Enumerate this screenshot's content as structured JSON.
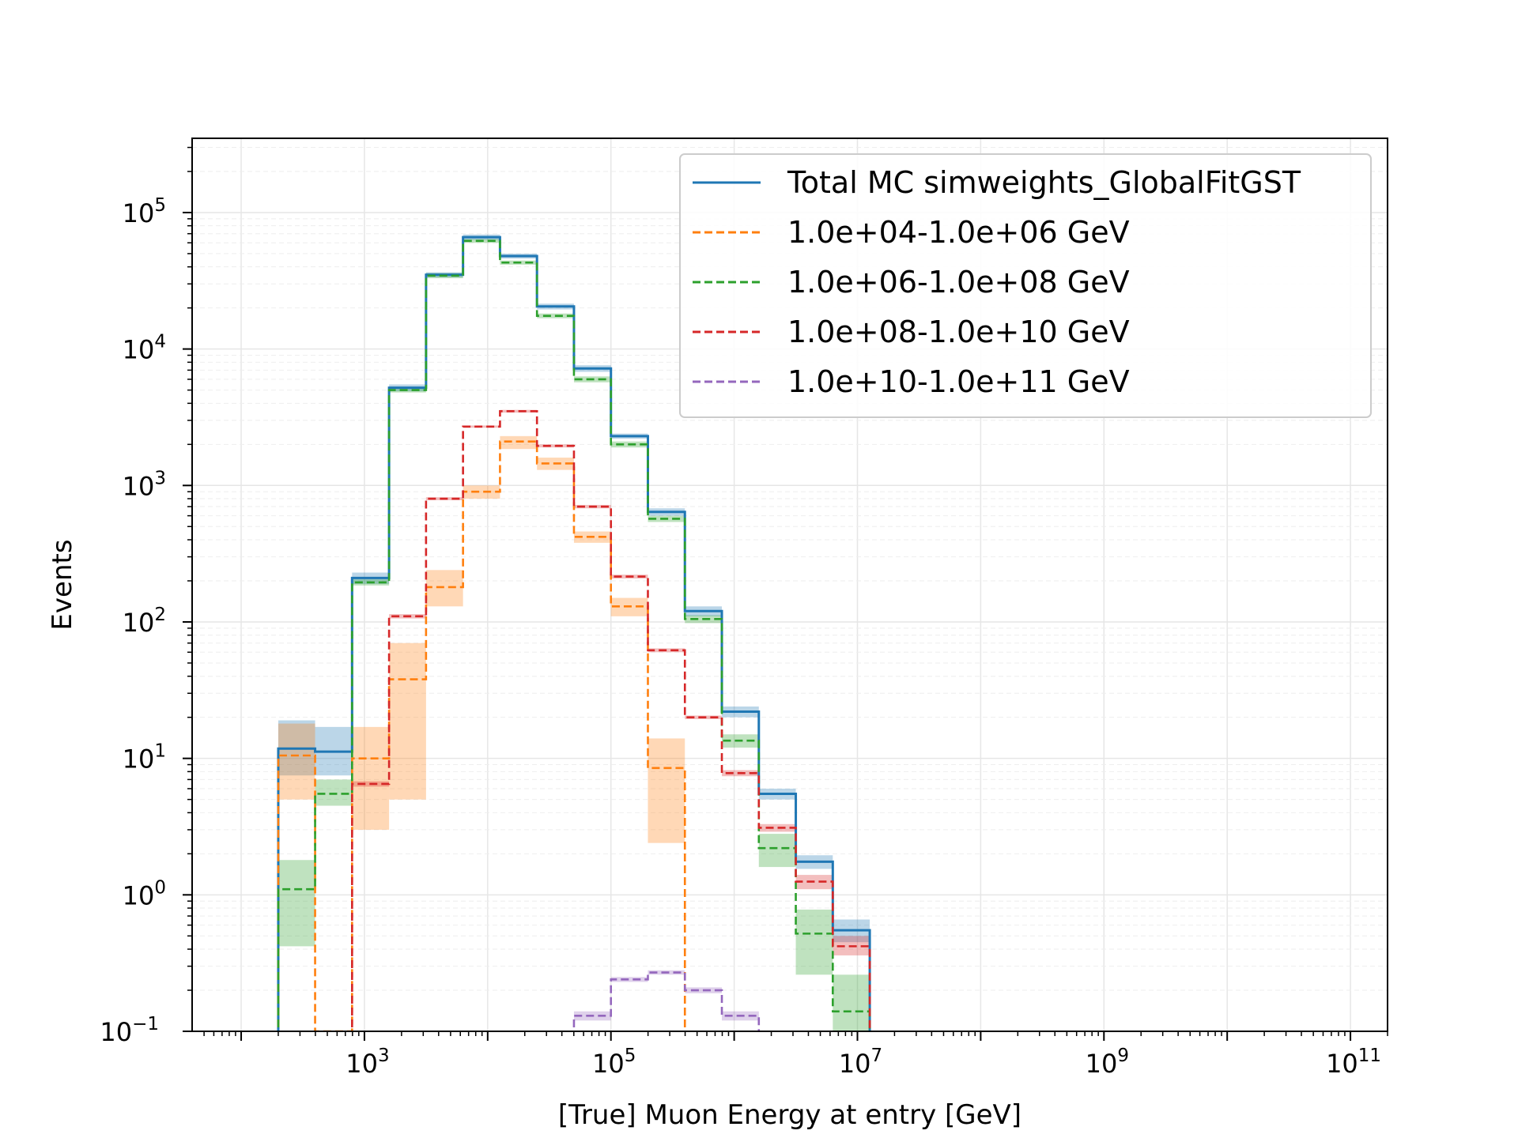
{
  "chart_data": {
    "type": "histogram",
    "xlabel": "[True] Muon Energy at entry [GeV]",
    "ylabel": "Events",
    "xscale": "log",
    "yscale": "log",
    "xlim": [
      40,
      200000000000.0
    ],
    "ylim": [
      0.1,
      350000
    ],
    "grid": true,
    "legend_position": "top-right",
    "x_tick_labels": [
      {
        "base": "10",
        "exp": "3",
        "value": 1000
      },
      {
        "base": "10",
        "exp": "5",
        "value": 100000
      },
      {
        "base": "10",
        "exp": "7",
        "value": 10000000
      },
      {
        "base": "10",
        "exp": "9",
        "value": 1000000000
      },
      {
        "base": "10",
        "exp": "11",
        "value": 100000000000
      }
    ],
    "y_tick_labels": [
      {
        "base": "10",
        "exp": "−1",
        "value": 0.1
      },
      {
        "base": "10",
        "exp": "0",
        "value": 1
      },
      {
        "base": "10",
        "exp": "1",
        "value": 10
      },
      {
        "base": "10",
        "exp": "2",
        "value": 100
      },
      {
        "base": "10",
        "exp": "3",
        "value": 1000
      },
      {
        "base": "10",
        "exp": "4",
        "value": 10000
      },
      {
        "base": "10",
        "exp": "5",
        "value": 100000
      }
    ],
    "bin_edges": [
      200,
      398,
      794,
      1585,
      3162,
      6310,
      12589,
      25119,
      50119,
      100000,
      199526,
      398107,
      794328,
      1584893,
      3162278,
      6309573,
      12589254,
      25118864
    ],
    "series": [
      {
        "name": "Total MC simweights_GlobalFitGST",
        "color": "#1f77b4",
        "dash": "solid",
        "values": [
          11.8,
          11.2,
          210,
          5200,
          35000,
          66000,
          48000,
          20500,
          7200,
          2300,
          640,
          120,
          22,
          5.5,
          1.75,
          0.55,
          null
        ],
        "low": [
          7.5,
          7.5,
          190,
          4900,
          33500,
          63000,
          46000,
          19500,
          6800,
          2200,
          600,
          110,
          20,
          5.0,
          1.55,
          0.45,
          null
        ],
        "high": [
          19,
          17,
          230,
          5500,
          36500,
          69000,
          50000,
          21500,
          7600,
          2400,
          680,
          130,
          24,
          6.0,
          1.95,
          0.66,
          null
        ]
      },
      {
        "name": "1.0e+04-1.0e+06 GeV",
        "color": "#ff7f0e",
        "dash": "dashed",
        "values": [
          10.5,
          0.1,
          10,
          38,
          180,
          900,
          2100,
          1450,
          420,
          130,
          8.5,
          null,
          null,
          null,
          null,
          null,
          null
        ],
        "low": [
          5,
          null,
          3,
          5,
          130,
          800,
          1850,
          1300,
          380,
          110,
          2.4,
          null,
          null,
          null,
          null,
          null,
          null
        ],
        "high": [
          18,
          0.12,
          17,
          70,
          240,
          1000,
          2300,
          1600,
          460,
          150,
          14,
          null,
          null,
          null,
          null,
          null,
          null
        ]
      },
      {
        "name": "1.0e+06-1.0e+08 GeV",
        "color": "#2ca02c",
        "dash": "dashed",
        "values": [
          1.1,
          5.5,
          195,
          5000,
          34500,
          62000,
          43000,
          17500,
          6000,
          2000,
          570,
          105,
          13.5,
          2.2,
          0.52,
          0.14,
          null
        ],
        "low": [
          0.42,
          4.5,
          185,
          4800,
          33000,
          60000,
          41500,
          16800,
          5700,
          1900,
          540,
          98,
          12,
          1.6,
          0.26,
          0.1,
          null
        ],
        "high": [
          1.8,
          7.0,
          205,
          5200,
          36000,
          64000,
          44500,
          18200,
          6300,
          2100,
          600,
          112,
          15,
          2.8,
          0.78,
          0.26,
          null
        ]
      },
      {
        "name": "1.0e+08-1.0e+10 GeV",
        "color": "#d62728",
        "dash": "dashed",
        "values": [
          null,
          null,
          6.5,
          110,
          800,
          2700,
          3500,
          1950,
          700,
          215,
          62,
          20,
          7.8,
          3.1,
          1.25,
          0.42,
          null
        ],
        "low": [
          null,
          null,
          6.2,
          106,
          780,
          2650,
          3420,
          1900,
          680,
          208,
          60,
          19.4,
          7.4,
          2.9,
          1.1,
          0.36,
          null
        ],
        "high": [
          null,
          null,
          6.8,
          114,
          820,
          2750,
          3580,
          2000,
          720,
          222,
          64,
          20.6,
          8.2,
          3.3,
          1.4,
          0.5,
          null
        ]
      },
      {
        "name": "1.0e+10-1.0e+11 GeV",
        "color": "#9467bd",
        "dash": "dashed",
        "values": [
          null,
          null,
          null,
          null,
          null,
          null,
          null,
          null,
          0.13,
          0.24,
          0.27,
          0.2,
          0.13,
          null,
          null,
          null,
          null
        ],
        "low": [
          null,
          null,
          null,
          null,
          null,
          null,
          null,
          null,
          0.12,
          0.23,
          0.26,
          0.19,
          0.12,
          null,
          null,
          null,
          null
        ],
        "high": [
          null,
          null,
          null,
          null,
          null,
          null,
          null,
          null,
          0.14,
          0.25,
          0.28,
          0.21,
          0.14,
          null,
          null,
          null,
          null
        ]
      }
    ]
  }
}
